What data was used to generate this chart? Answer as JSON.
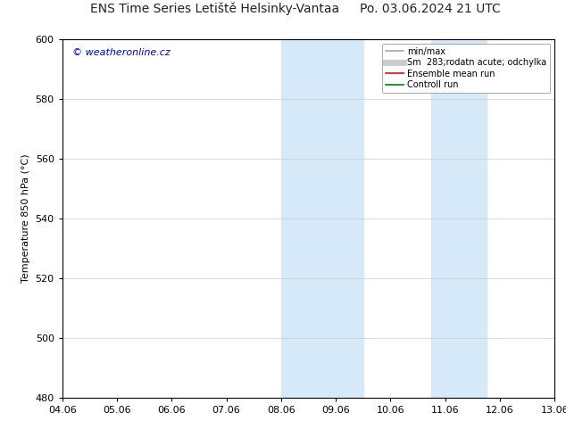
{
  "title_left": "ENS Time Series Letiště Helsinky-Vantaa",
  "title_right": "Po. 03.06.2024 21 UTC",
  "ylabel": "Temperature 850 hPa (°C)",
  "watermark": "© weatheronline.cz",
  "watermark_color": "#0000cc",
  "xlim_start": 0,
  "xlim_end": 9,
  "ylim_min": 480,
  "ylim_max": 600,
  "yticks": [
    480,
    500,
    520,
    540,
    560,
    580,
    600
  ],
  "xtick_labels": [
    "04.06",
    "05.06",
    "06.06",
    "07.06",
    "08.06",
    "09.06",
    "10.06",
    "11.06",
    "12.06",
    "13.06"
  ],
  "shaded_regions": [
    {
      "xstart": 4.0,
      "xend": 4.5,
      "color": "#d6e9f8"
    },
    {
      "xstart": 4.5,
      "xend": 5.0,
      "color": "#d6e9f8"
    },
    {
      "xstart": 5.0,
      "xend": 5.5,
      "color": "#d6e9f8"
    },
    {
      "xstart": 6.75,
      "xend": 7.25,
      "color": "#d6e9f8"
    },
    {
      "xstart": 7.25,
      "xend": 7.75,
      "color": "#d6e9f8"
    }
  ],
  "legend_entries": [
    {
      "label": "min/max",
      "color": "#aaaaaa",
      "lw": 1.2,
      "style": "solid"
    },
    {
      "label": "Sm  283;rodatn acute; odchylka",
      "color": "#cccccc",
      "lw": 5,
      "style": "solid"
    },
    {
      "label": "Ensemble mean run",
      "color": "#ff0000",
      "lw": 1.2,
      "style": "solid"
    },
    {
      "label": "Controll run",
      "color": "#008000",
      "lw": 1.2,
      "style": "solid"
    }
  ],
  "bg_color": "#ffffff",
  "plot_bg_color": "#ffffff",
  "grid_color": "#cccccc",
  "title_fontsize": 10,
  "axis_label_fontsize": 8,
  "tick_fontsize": 8
}
